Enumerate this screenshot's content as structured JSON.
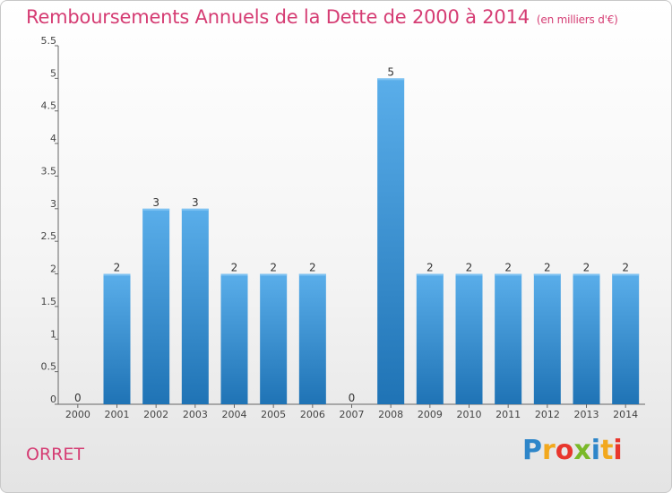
{
  "header": {
    "title": "Remboursements Annuels de la Dette de 2000 à 2014",
    "unit": "(en milliers d'€)"
  },
  "footer": {
    "commune": "ORRET",
    "logo_letters": [
      {
        "ch": "P",
        "color": "#2e86c9"
      },
      {
        "ch": "r",
        "color": "#f2a81d"
      },
      {
        "ch": "o",
        "color": "#e8362d"
      },
      {
        "ch": "x",
        "color": "#7ab929"
      },
      {
        "ch": "i",
        "color": "#2e86c9"
      },
      {
        "ch": "t",
        "color": "#f2a81d"
      },
      {
        "ch": "i",
        "color": "#e8362d"
      }
    ]
  },
  "colors": {
    "accent": "#d53c73",
    "bar_top": "#5aaeea",
    "bar_bottom": "#1f73b5",
    "grid": "#cfcfcf"
  },
  "chart_data": {
    "type": "bar",
    "categories": [
      "2000",
      "2001",
      "2002",
      "2003",
      "2004",
      "2005",
      "2006",
      "2007",
      "2008",
      "2009",
      "2010",
      "2011",
      "2012",
      "2013",
      "2014"
    ],
    "values": [
      0,
      2,
      3,
      3,
      2,
      2,
      2,
      0,
      5,
      2,
      2,
      2,
      2,
      2,
      2
    ],
    "value_labels": [
      "0",
      "2",
      "3",
      "3",
      "2",
      "2",
      "2",
      "0",
      "5",
      "2",
      "2",
      "2",
      "2",
      "2",
      "2"
    ],
    "title": "Remboursements Annuels de la Dette de 2000 à 2014",
    "xlabel": "",
    "ylabel": "",
    "ylim": [
      0,
      5.5
    ],
    "yticks": [
      0,
      0.5,
      1,
      1.5,
      2,
      2.5,
      3,
      3.5,
      4,
      4.5,
      5,
      5.5
    ],
    "ytick_labels": [
      "0",
      "0.5",
      "1",
      "1.5",
      "2",
      "2.5",
      "3",
      "3.5",
      "4",
      "4.5",
      "5",
      "5.5"
    ],
    "grid": false
  }
}
